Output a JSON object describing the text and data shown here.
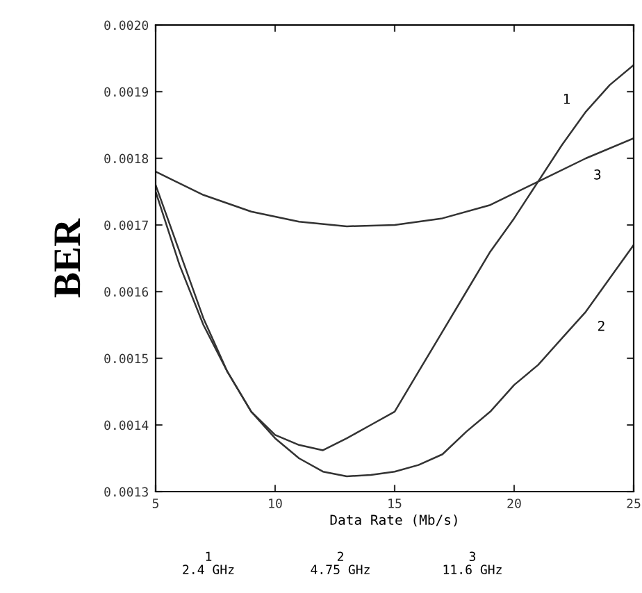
{
  "chart_data": {
    "type": "line",
    "xlabel": "Data Rate (Mb/s)",
    "ylabel": "BER",
    "xlim": [
      5,
      25
    ],
    "xticks": [
      5,
      10,
      15,
      20,
      25
    ],
    "ylim": [
      0.0013,
      0.002
    ],
    "yticks": [
      {
        "value": 0.0013,
        "label": "0.0013"
      },
      {
        "value": 0.0014,
        "label": "0.0014"
      },
      {
        "value": 0.0015,
        "label": "0.0015"
      },
      {
        "value": 0.0016,
        "label": "0.0016"
      },
      {
        "value": 0.0017,
        "label": "0.0017"
      },
      {
        "value": 0.0018,
        "label": "0.0018"
      },
      {
        "value": 0.0019,
        "label": "0.0019"
      },
      {
        "value": 0.002,
        "label": "0.0020"
      }
    ],
    "grid": false,
    "legend": false,
    "marker": "none",
    "line_style": "solid",
    "series": [
      {
        "name": "1",
        "color": "#333333",
        "x": [
          5,
          6,
          7,
          8,
          9,
          10,
          11,
          12,
          13,
          14,
          15,
          16,
          17,
          18,
          19,
          20,
          21,
          22,
          23,
          24,
          25
        ],
        "values": [
          0.00176,
          0.00166,
          0.00156,
          0.00148,
          0.00142,
          0.001385,
          0.00137,
          0.001362,
          0.00138,
          0.0014,
          0.00142,
          0.00148,
          0.00154,
          0.0016,
          0.00166,
          0.00171,
          0.001765,
          0.00182,
          0.00187,
          0.00191,
          0.00194
        ]
      },
      {
        "name": "2",
        "color": "#333333",
        "x": [
          5,
          6,
          7,
          8,
          9,
          10,
          11,
          12,
          13,
          14,
          15,
          16,
          17,
          18,
          19,
          20,
          21,
          22,
          23,
          24,
          25
        ],
        "values": [
          0.00175,
          0.00164,
          0.00155,
          0.00148,
          0.00142,
          0.00138,
          0.00135,
          0.00133,
          0.001323,
          0.001325,
          0.00133,
          0.00134,
          0.001356,
          0.00139,
          0.00142,
          0.00146,
          0.00149,
          0.00153,
          0.00157,
          0.00162,
          0.00167
        ]
      },
      {
        "name": "3",
        "color": "#333333",
        "x": [
          5,
          7,
          9,
          11,
          13,
          15,
          17,
          19,
          21,
          23,
          25
        ],
        "values": [
          0.00178,
          0.001745,
          0.00172,
          0.001705,
          0.001698,
          0.0017,
          0.00171,
          0.00173,
          0.001765,
          0.0018,
          0.00183
        ]
      }
    ],
    "annotations": [
      "1\n2.4 GHz",
      "2\n4.75 GHz",
      "3\n11.6 GHz"
    ]
  }
}
